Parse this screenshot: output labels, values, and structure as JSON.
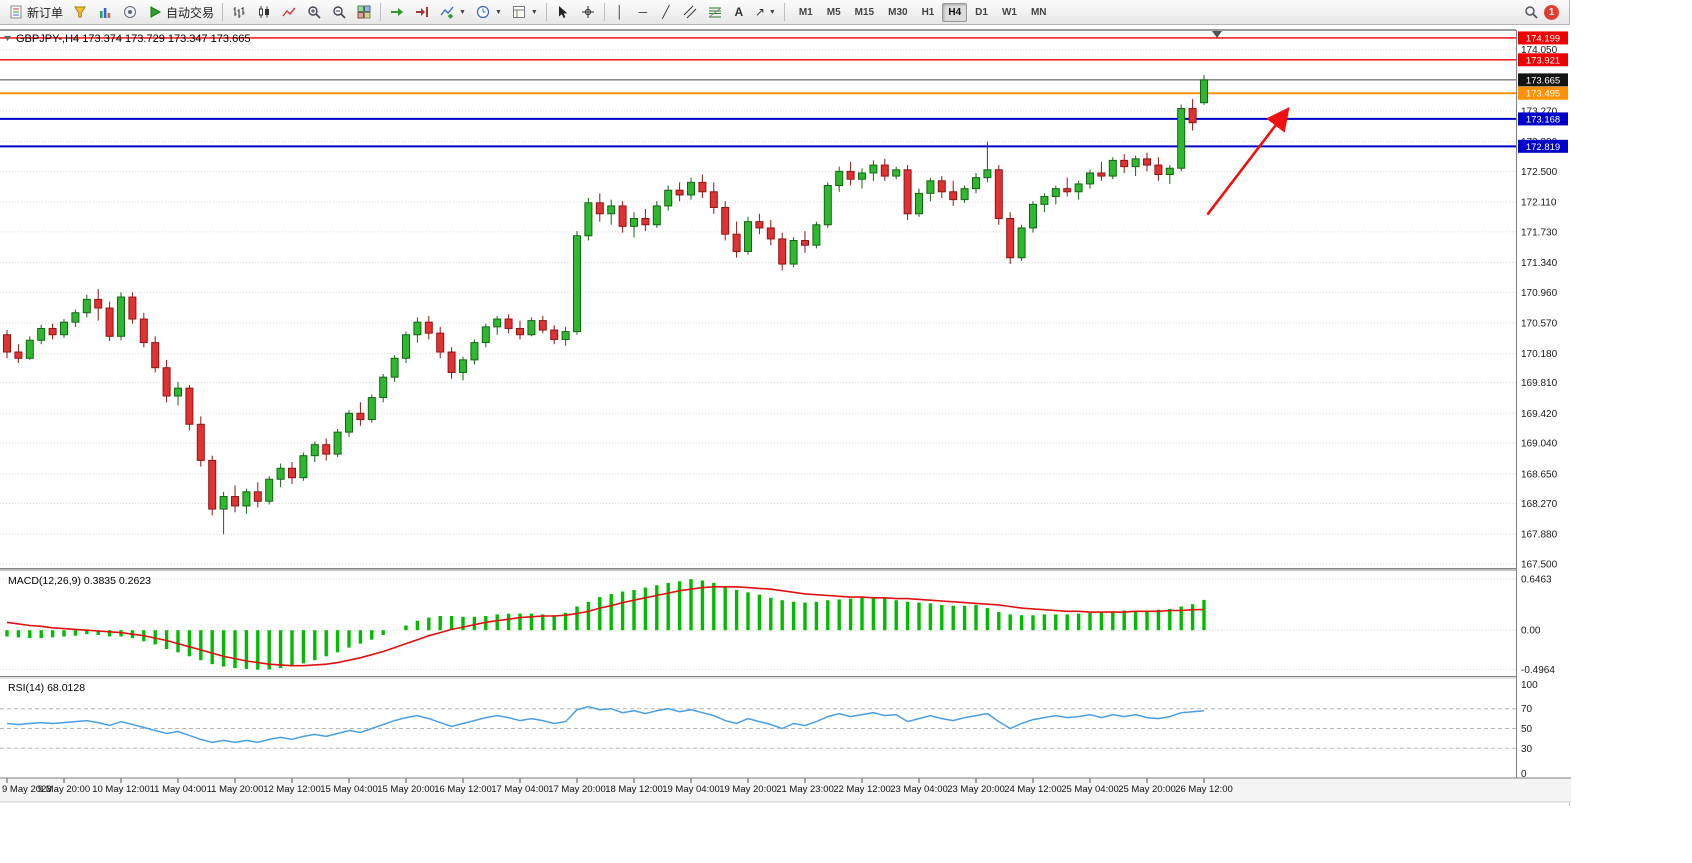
{
  "toolbar": {
    "new_order_label": "新订单",
    "auto_trading_label": "自动交易",
    "notification_count": "1",
    "timeframes": [
      {
        "label": "M1",
        "active": false
      },
      {
        "label": "M5",
        "active": false
      },
      {
        "label": "M15",
        "active": false
      },
      {
        "label": "M30",
        "active": false
      },
      {
        "label": "H1",
        "active": false
      },
      {
        "label": "H4",
        "active": true
      },
      {
        "label": "D1",
        "active": false
      },
      {
        "label": "W1",
        "active": false
      },
      {
        "label": "MN",
        "active": false
      }
    ]
  },
  "icons": {
    "dropdown_caret": "▼",
    "vertical_line_glyph": "│",
    "horizontal_line_glyph": "─",
    "trendline_glyph": "╱",
    "text_glyph": "A",
    "arrows_glyph": "↗",
    "new_order_icon": "document",
    "profiles_icon": "funnel",
    "market_watch_icon": "bar-columns",
    "navigator_icon": "circle-dot",
    "auto_trading_icon": "play-triangle",
    "search_icon": "magnifier"
  },
  "chart_data": [
    {
      "type": "candlestick",
      "symbol": "GBPJPY-,H4",
      "ohlc_text": "173.374 173.729 173.347 173.665",
      "last_ohlc": {
        "open": 173.374,
        "high": 173.729,
        "low": 173.347,
        "close": 173.665
      },
      "candles_per_label": 5,
      "y_axis": {
        "min": 167.45,
        "max": 174.3,
        "grid_labels": [
          "174.050",
          "173.270",
          "172.880",
          "172.500",
          "172.110",
          "171.730",
          "171.340",
          "170.960",
          "170.570",
          "170.180",
          "169.810",
          "169.420",
          "169.040",
          "168.650",
          "168.270",
          "167.880",
          "167.500"
        ]
      },
      "x_labels": [
        "9 May 2023",
        "9 May 20:00",
        "10 May 12:00",
        "11 May 04:00",
        "11 May 20:00",
        "12 May 12:00",
        "15 May 04:00",
        "15 May 20:00",
        "16 May 12:00",
        "17 May 04:00",
        "17 May 20:00",
        "18 May 12:00",
        "19 May 04:00",
        "19 May 20:00",
        "21 May 23:00",
        "22 May 12:00",
        "23 May 04:00",
        "23 May 20:00",
        "24 May 12:00",
        "25 May 04:00",
        "25 May 20:00",
        "26 May 12:00"
      ],
      "hlines": [
        {
          "price": 174.199,
          "color": "#ee0000",
          "width": 1.4,
          "label": "174.199"
        },
        {
          "price": 173.921,
          "color": "#ee0000",
          "width": 1.4,
          "label": "173.921"
        },
        {
          "price": 173.495,
          "color": "#ff9000",
          "width": 2,
          "label": "173.495"
        },
        {
          "price": 173.168,
          "color": "#0000c8",
          "width": 2,
          "label": "173.168"
        },
        {
          "price": 172.819,
          "color": "#0000c8",
          "width": 2,
          "label": "172.819"
        }
      ],
      "current_price": {
        "value": 173.665,
        "label": "173.665",
        "box_color": "#141414"
      },
      "arrow_annotation": {
        "from": {
          "index": 105.3,
          "price": 171.95
        },
        "to": {
          "index": 112.3,
          "price": 173.28
        },
        "color": "#ee1111"
      },
      "candles": [
        [
          170.42,
          170.48,
          170.12,
          170.2
        ],
        [
          170.2,
          170.3,
          170.06,
          170.12
        ],
        [
          170.12,
          170.4,
          170.1,
          170.35
        ],
        [
          170.35,
          170.55,
          170.3,
          170.5
        ],
        [
          170.5,
          170.56,
          170.36,
          170.42
        ],
        [
          170.42,
          170.62,
          170.38,
          170.58
        ],
        [
          170.58,
          170.74,
          170.52,
          170.7
        ],
        [
          170.7,
          170.93,
          170.64,
          170.87
        ],
        [
          170.87,
          171.0,
          170.6,
          170.76
        ],
        [
          170.76,
          170.84,
          170.34,
          170.4
        ],
        [
          170.4,
          170.96,
          170.35,
          170.9
        ],
        [
          170.9,
          170.96,
          170.56,
          170.62
        ],
        [
          170.62,
          170.7,
          170.26,
          170.32
        ],
        [
          170.32,
          170.4,
          169.94,
          170.0
        ],
        [
          170.0,
          170.1,
          169.56,
          169.64
        ],
        [
          169.64,
          169.82,
          169.52,
          169.74
        ],
        [
          169.74,
          169.78,
          169.2,
          169.28
        ],
        [
          169.28,
          169.38,
          168.74,
          168.82
        ],
        [
          168.82,
          168.88,
          168.12,
          168.2
        ],
        [
          168.2,
          168.42,
          167.88,
          168.36
        ],
        [
          168.36,
          168.5,
          168.16,
          168.24
        ],
        [
          168.24,
          168.46,
          168.14,
          168.42
        ],
        [
          168.42,
          168.54,
          168.22,
          168.3
        ],
        [
          168.3,
          168.62,
          168.26,
          168.58
        ],
        [
          168.58,
          168.78,
          168.48,
          168.72
        ],
        [
          168.72,
          168.8,
          168.52,
          168.6
        ],
        [
          168.6,
          168.92,
          168.56,
          168.88
        ],
        [
          168.88,
          169.06,
          168.8,
          169.02
        ],
        [
          169.02,
          169.1,
          168.82,
          168.9
        ],
        [
          168.9,
          169.22,
          168.86,
          169.18
        ],
        [
          169.18,
          169.46,
          169.12,
          169.42
        ],
        [
          169.42,
          169.56,
          169.26,
          169.34
        ],
        [
          169.34,
          169.66,
          169.3,
          169.62
        ],
        [
          169.62,
          169.92,
          169.56,
          169.88
        ],
        [
          169.88,
          170.16,
          169.82,
          170.12
        ],
        [
          170.12,
          170.46,
          170.06,
          170.42
        ],
        [
          170.42,
          170.64,
          170.32,
          170.58
        ],
        [
          170.58,
          170.66,
          170.36,
          170.44
        ],
        [
          170.44,
          170.52,
          170.12,
          170.2
        ],
        [
          170.2,
          170.26,
          169.86,
          169.94
        ],
        [
          169.94,
          170.14,
          169.84,
          170.1
        ],
        [
          170.1,
          170.36,
          170.04,
          170.32
        ],
        [
          170.32,
          170.56,
          170.26,
          170.52
        ],
        [
          170.52,
          170.66,
          170.42,
          170.62
        ],
        [
          170.62,
          170.68,
          170.44,
          170.5
        ],
        [
          170.5,
          170.6,
          170.36,
          170.42
        ],
        [
          170.42,
          170.64,
          170.4,
          170.6
        ],
        [
          170.6,
          170.66,
          170.44,
          170.48
        ],
        [
          170.48,
          170.54,
          170.3,
          170.36
        ],
        [
          170.36,
          170.52,
          170.28,
          170.46
        ],
        [
          170.46,
          171.74,
          170.42,
          171.68
        ],
        [
          171.68,
          172.16,
          171.62,
          172.1
        ],
        [
          172.1,
          172.22,
          171.86,
          171.96
        ],
        [
          171.96,
          172.14,
          171.82,
          172.06
        ],
        [
          172.06,
          172.12,
          171.72,
          171.8
        ],
        [
          171.8,
          171.98,
          171.66,
          171.9
        ],
        [
          171.9,
          172.02,
          171.74,
          171.82
        ],
        [
          171.82,
          172.12,
          171.78,
          172.06
        ],
        [
          172.06,
          172.32,
          172.0,
          172.26
        ],
        [
          172.26,
          172.36,
          172.12,
          172.2
        ],
        [
          172.2,
          172.42,
          172.14,
          172.36
        ],
        [
          172.36,
          172.46,
          172.16,
          172.24
        ],
        [
          172.24,
          172.36,
          171.96,
          172.04
        ],
        [
          172.04,
          172.12,
          171.62,
          171.7
        ],
        [
          171.7,
          171.86,
          171.4,
          171.48
        ],
        [
          171.48,
          171.92,
          171.44,
          171.86
        ],
        [
          171.86,
          171.96,
          171.7,
          171.78
        ],
        [
          171.78,
          171.88,
          171.56,
          171.64
        ],
        [
          171.64,
          171.72,
          171.24,
          171.32
        ],
        [
          171.32,
          171.66,
          171.28,
          171.62
        ],
        [
          171.62,
          171.74,
          171.46,
          171.56
        ],
        [
          171.56,
          171.86,
          171.52,
          171.82
        ],
        [
          171.82,
          172.36,
          171.78,
          172.32
        ],
        [
          172.32,
          172.56,
          172.24,
          172.5
        ],
        [
          172.5,
          172.62,
          172.32,
          172.4
        ],
        [
          172.4,
          172.54,
          172.28,
          172.48
        ],
        [
          172.48,
          172.64,
          172.38,
          172.58
        ],
        [
          172.58,
          172.66,
          172.38,
          172.44
        ],
        [
          172.44,
          172.56,
          172.4,
          172.52
        ],
        [
          172.52,
          172.58,
          171.88,
          171.96
        ],
        [
          171.96,
          172.28,
          171.92,
          172.22
        ],
        [
          172.22,
          172.42,
          172.12,
          172.38
        ],
        [
          172.38,
          172.44,
          172.16,
          172.24
        ],
        [
          172.24,
          172.38,
          172.06,
          172.14
        ],
        [
          172.14,
          172.32,
          172.1,
          172.28
        ],
        [
          172.28,
          172.48,
          172.22,
          172.42
        ],
        [
          172.42,
          172.88,
          172.36,
          172.52
        ],
        [
          172.52,
          172.58,
          171.82,
          171.9
        ],
        [
          171.9,
          171.98,
          171.32,
          171.4
        ],
        [
          171.4,
          171.82,
          171.36,
          171.78
        ],
        [
          171.78,
          172.12,
          171.72,
          172.08
        ],
        [
          172.08,
          172.22,
          171.98,
          172.18
        ],
        [
          172.18,
          172.32,
          172.08,
          172.28
        ],
        [
          172.28,
          172.42,
          172.18,
          172.24
        ],
        [
          172.24,
          172.38,
          172.14,
          172.34
        ],
        [
          172.34,
          172.52,
          172.28,
          172.48
        ],
        [
          172.48,
          172.62,
          172.38,
          172.44
        ],
        [
          172.44,
          172.68,
          172.4,
          172.64
        ],
        [
          172.64,
          172.72,
          172.48,
          172.56
        ],
        [
          172.56,
          172.7,
          172.44,
          172.66
        ],
        [
          172.66,
          172.74,
          172.5,
          172.58
        ],
        [
          172.58,
          172.68,
          172.38,
          172.46
        ],
        [
          172.46,
          172.58,
          172.34,
          172.54
        ],
        [
          172.54,
          173.35,
          172.5,
          173.3
        ],
        [
          173.3,
          173.42,
          173.02,
          173.12
        ],
        [
          173.374,
          173.729,
          173.347,
          173.665
        ]
      ]
    },
    {
      "type": "line+histogram",
      "title": "MACD(12,26,9)",
      "values_text": "0.3835 0.2623",
      "axis_labels": [
        "0.6463",
        "0.00",
        "-0.4964"
      ],
      "y_min": -0.58,
      "y_max": 0.75,
      "histogram": [
        -0.08,
        -0.09,
        -0.1,
        -0.1,
        -0.09,
        -0.08,
        -0.07,
        -0.05,
        -0.06,
        -0.08,
        -0.08,
        -0.1,
        -0.14,
        -0.18,
        -0.24,
        -0.28,
        -0.33,
        -0.38,
        -0.43,
        -0.46,
        -0.48,
        -0.49,
        -0.5,
        -0.4964,
        -0.48,
        -0.45,
        -0.42,
        -0.38,
        -0.33,
        -0.28,
        -0.22,
        -0.17,
        -0.12,
        -0.06,
        0.0,
        0.06,
        0.12,
        0.16,
        0.18,
        0.18,
        0.17,
        0.17,
        0.18,
        0.2,
        0.21,
        0.21,
        0.21,
        0.2,
        0.19,
        0.22,
        0.3,
        0.36,
        0.42,
        0.46,
        0.49,
        0.51,
        0.54,
        0.57,
        0.6,
        0.62,
        0.6463,
        0.63,
        0.6,
        0.55,
        0.51,
        0.48,
        0.45,
        0.41,
        0.38,
        0.36,
        0.35,
        0.36,
        0.38,
        0.39,
        0.4,
        0.41,
        0.41,
        0.41,
        0.38,
        0.36,
        0.35,
        0.34,
        0.32,
        0.31,
        0.31,
        0.32,
        0.28,
        0.23,
        0.2,
        0.19,
        0.19,
        0.2,
        0.2,
        0.2,
        0.21,
        0.22,
        0.23,
        0.24,
        0.25,
        0.25,
        0.25,
        0.26,
        0.27,
        0.3,
        0.33,
        0.3835
      ],
      "signal": [
        0.1,
        0.08,
        0.06,
        0.05,
        0.03,
        0.02,
        0.01,
        0.0,
        -0.01,
        -0.02,
        -0.03,
        -0.05,
        -0.07,
        -0.1,
        -0.13,
        -0.17,
        -0.21,
        -0.25,
        -0.29,
        -0.33,
        -0.36,
        -0.39,
        -0.41,
        -0.43,
        -0.44,
        -0.45,
        -0.45,
        -0.44,
        -0.43,
        -0.41,
        -0.38,
        -0.35,
        -0.31,
        -0.27,
        -0.22,
        -0.17,
        -0.12,
        -0.07,
        -0.03,
        0.01,
        0.04,
        0.07,
        0.1,
        0.12,
        0.14,
        0.16,
        0.17,
        0.18,
        0.18,
        0.19,
        0.21,
        0.24,
        0.28,
        0.31,
        0.35,
        0.38,
        0.41,
        0.44,
        0.47,
        0.5,
        0.52,
        0.54,
        0.55,
        0.55,
        0.55,
        0.54,
        0.53,
        0.52,
        0.5,
        0.48,
        0.46,
        0.45,
        0.44,
        0.43,
        0.42,
        0.42,
        0.41,
        0.41,
        0.4,
        0.4,
        0.39,
        0.38,
        0.37,
        0.36,
        0.35,
        0.34,
        0.33,
        0.32,
        0.3,
        0.28,
        0.27,
        0.26,
        0.25,
        0.24,
        0.24,
        0.23,
        0.23,
        0.23,
        0.23,
        0.24,
        0.24,
        0.24,
        0.25,
        0.25,
        0.26,
        0.2623
      ]
    },
    {
      "type": "line",
      "title": "RSI(14)",
      "values_text": "68.0128",
      "axis_labels": [
        "100",
        "70",
        "50",
        "30",
        "0"
      ],
      "levels": [
        70,
        50,
        30
      ],
      "y_min": 0,
      "y_max": 100,
      "values": [
        55,
        54,
        55,
        56,
        55,
        56,
        57,
        58,
        56,
        53,
        57,
        54,
        51,
        48,
        45,
        47,
        43,
        39,
        36,
        38,
        36,
        38,
        36,
        39,
        41,
        39,
        42,
        44,
        42,
        45,
        48,
        46,
        50,
        54,
        58,
        61,
        63,
        60,
        56,
        52,
        55,
        58,
        61,
        63,
        61,
        58,
        60,
        58,
        55,
        57,
        69,
        72,
        69,
        70,
        66,
        68,
        65,
        68,
        70,
        67,
        69,
        66,
        63,
        58,
        55,
        60,
        57,
        54,
        50,
        55,
        53,
        57,
        62,
        65,
        62,
        64,
        66,
        63,
        64,
        57,
        60,
        63,
        60,
        58,
        61,
        63,
        65,
        57,
        50,
        55,
        59,
        61,
        63,
        61,
        62,
        64,
        61,
        64,
        62,
        64,
        61,
        60,
        62,
        66,
        67,
        68.0128
      ]
    }
  ]
}
